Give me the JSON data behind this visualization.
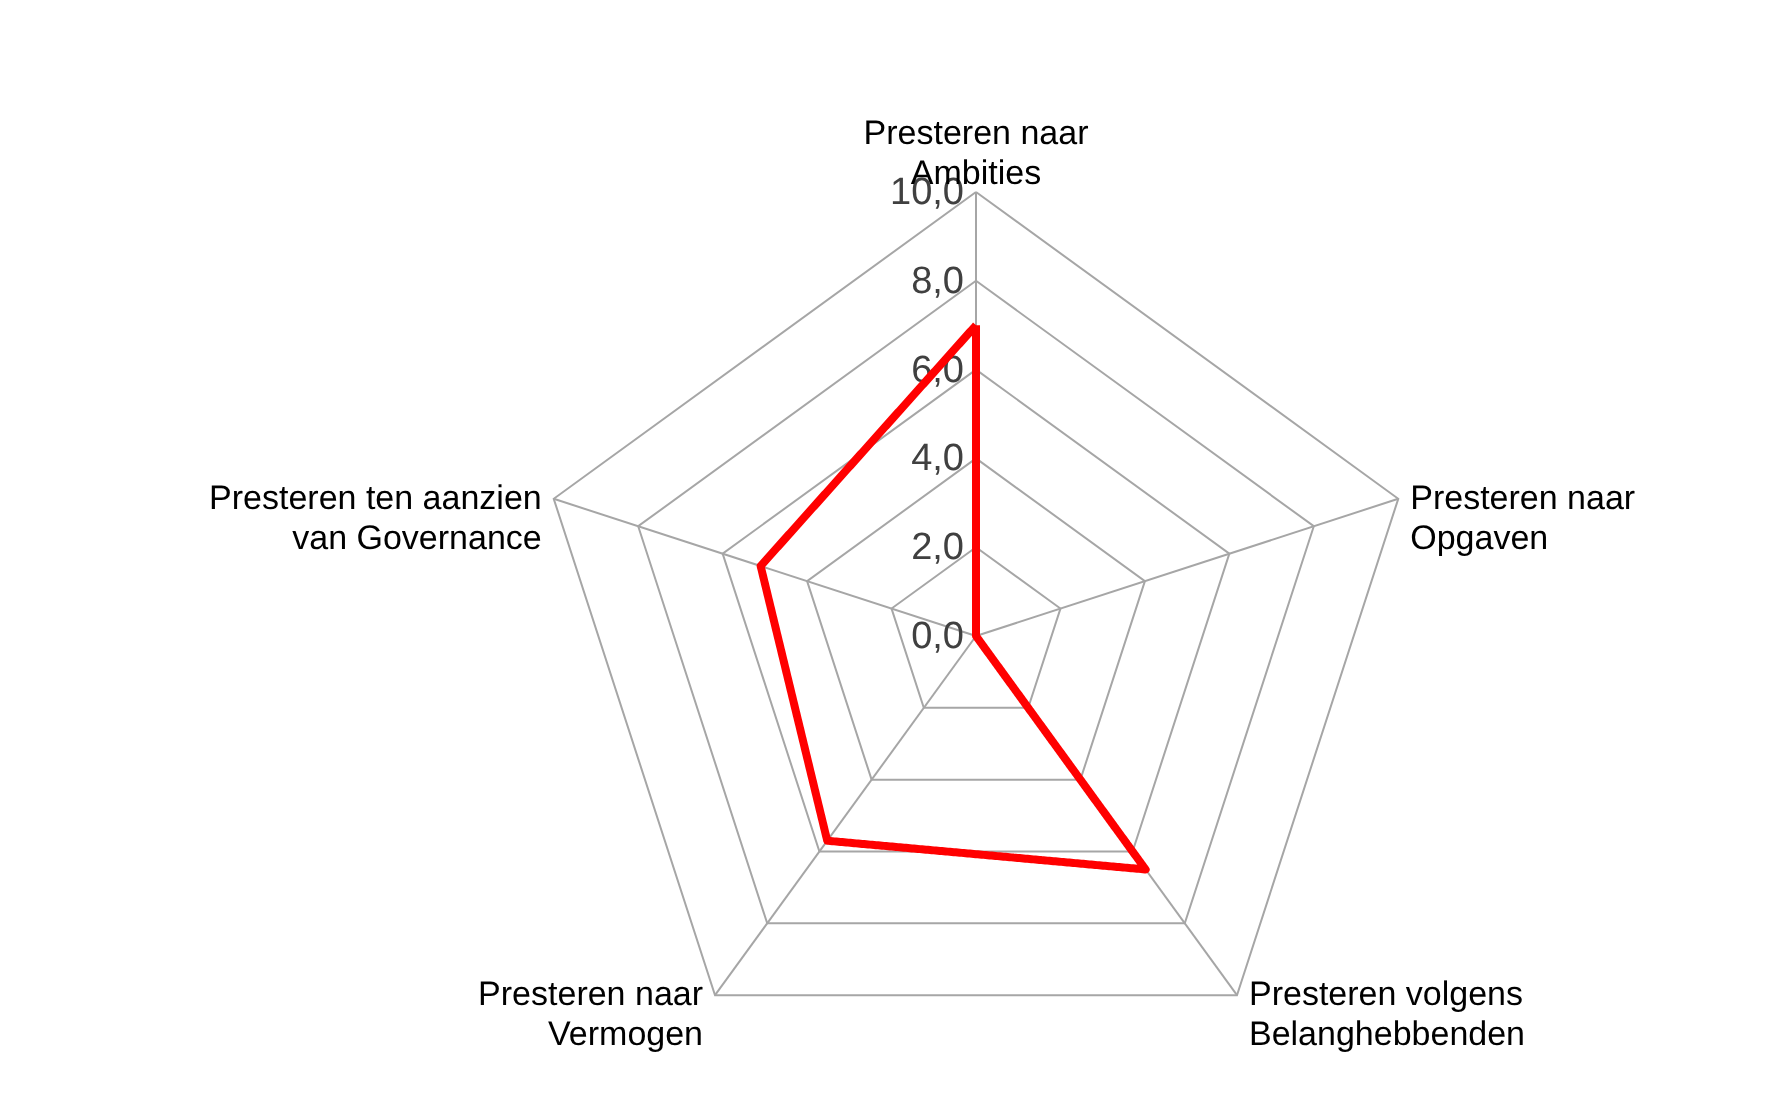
{
  "chart_data": {
    "type": "radar",
    "categories": [
      "Presteren naar Ambities",
      "Presteren naar Opgaven",
      "Presteren volgens Belanghebbenden",
      "Presteren naar Vermogen",
      "Presteren ten aanzien van Governance"
    ],
    "series": [
      {
        "color": "#ff0000",
        "values": [
          7.0,
          0.0,
          6.5,
          5.7,
          5.1
        ]
      }
    ],
    "ylim": [
      0,
      10
    ],
    "yticks": [
      {
        "value": 0,
        "label": "0,0"
      },
      {
        "value": 2,
        "label": "2,0"
      },
      {
        "value": 4,
        "label": "4,0"
      },
      {
        "value": 6,
        "label": "6,0"
      },
      {
        "value": 8,
        "label": "8,0"
      },
      {
        "value": 10,
        "label": "10,0"
      }
    ],
    "grid": true,
    "line_style": "solid"
  }
}
